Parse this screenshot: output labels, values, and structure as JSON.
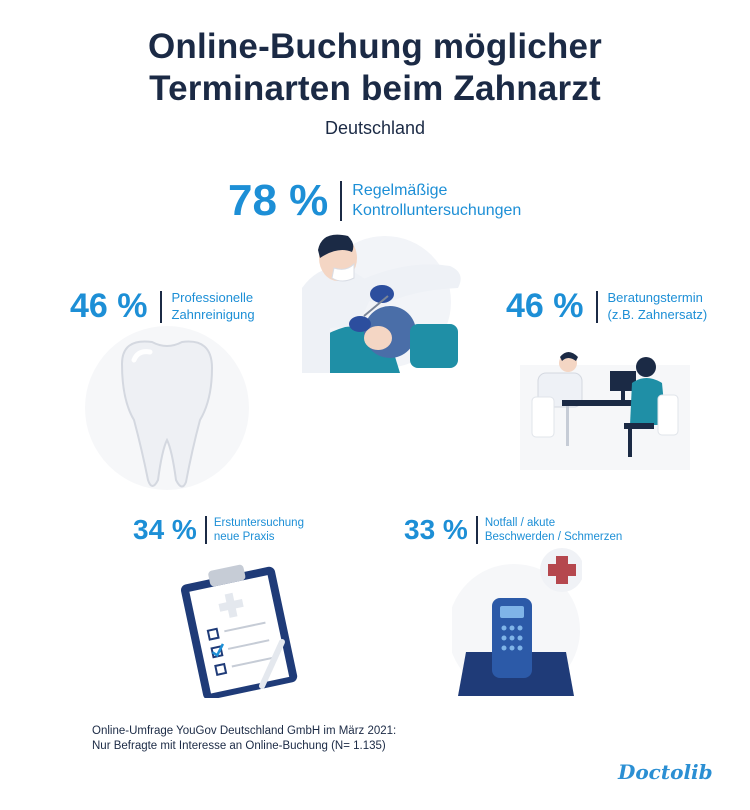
{
  "header": {
    "title_line1": "Online-Buchung möglicher",
    "title_line2": "Terminarten beim Zahnarzt",
    "subtitle": "Deutschland"
  },
  "colors": {
    "accent": "#1d8fd6",
    "text": "#1b2a45",
    "teal": "#1f8fa6",
    "navy": "#1f3b78",
    "cross_red": "#b5474e"
  },
  "chart_data": {
    "type": "infographic",
    "unit": "%",
    "items": [
      {
        "value": 78,
        "value_label": "78 %",
        "label": "Regelmäßige\nKontrolluntersuchungen",
        "icon": "dentist-with-patient-icon"
      },
      {
        "value": 46,
        "value_label": "46 %",
        "label": "Professionelle\nZahnreinigung",
        "icon": "tooth-icon"
      },
      {
        "value": 46,
        "value_label": "46 %",
        "label": "Beratungstermin\n(z.B. Zahnersatz)",
        "icon": "consultation-desk-icon"
      },
      {
        "value": 34,
        "value_label": "34 %",
        "label": "Erstuntersuchung\nneue Praxis",
        "icon": "clipboard-checklist-icon"
      },
      {
        "value": 33,
        "value_label": "33 %",
        "label": "Notfall / akute\nBeschwerden / Schmerzen",
        "icon": "emergency-phone-icon"
      }
    ]
  },
  "footnote": "Online-Umfrage YouGov Deutschland GmbH im März 2021:\nNur Befragte mit Interesse an Online-Buchung (N= 1.135)",
  "brand": {
    "logo_text": "Doctolib"
  }
}
